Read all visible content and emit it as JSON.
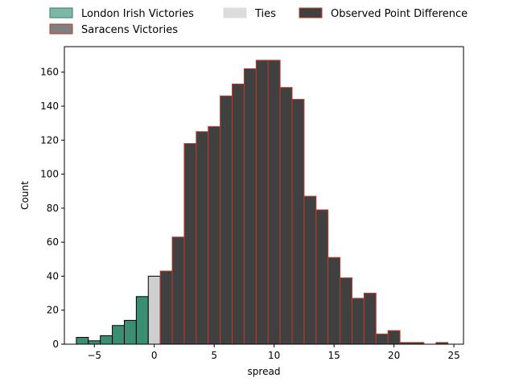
{
  "chart_data": {
    "type": "bar",
    "xlabel": "spread",
    "ylabel": "Count",
    "xlim": [
      -7.5,
      25.8
    ],
    "ylim": [
      0,
      175
    ],
    "x_ticks": [
      -5,
      0,
      5,
      10,
      15,
      20,
      25
    ],
    "y_ticks": [
      0,
      20,
      40,
      60,
      80,
      100,
      120,
      140,
      160
    ],
    "x_tick_labels": [
      "−5",
      "0",
      "5",
      "10",
      "15",
      "20",
      "25"
    ],
    "y_tick_labels": [
      "0",
      "20",
      "40",
      "60",
      "80",
      "100",
      "120",
      "140",
      "160"
    ],
    "grid": false,
    "bin_width": 1,
    "legend": {
      "placement": "top-outside",
      "entries": [
        {
          "label": "London Irish Victories",
          "color": "#7fb8a7",
          "edge": "#2e7d62"
        },
        {
          "label": "Ties",
          "color": "#dcdcdc",
          "edge": "#dcdcdc"
        },
        {
          "label": "Observed Point Difference",
          "color": "#404040",
          "edge": "#c0392b"
        },
        {
          "label": "Saracens Victories",
          "color": "#808080",
          "edge": "#c0392b"
        }
      ]
    },
    "series": [
      {
        "name": "London Irish Victories",
        "color": "#3a8f73",
        "edge": "#000000",
        "bins": [
          {
            "left": -6.5,
            "right": -5.5,
            "count": 4
          },
          {
            "left": -5.5,
            "right": -4.5,
            "count": 2
          },
          {
            "left": -4.5,
            "right": -3.5,
            "count": 5
          },
          {
            "left": -3.5,
            "right": -2.5,
            "count": 11
          },
          {
            "left": -2.5,
            "right": -1.5,
            "count": 14
          },
          {
            "left": -1.5,
            "right": -0.5,
            "count": 28
          }
        ]
      },
      {
        "name": "Ties",
        "color": "#cfcfcf",
        "edge": "#000000",
        "bins": [
          {
            "left": -0.5,
            "right": 0.5,
            "count": 40
          }
        ]
      },
      {
        "name": "Saracens Victories",
        "color": "#404040",
        "edge": "#c0392b",
        "bins": [
          {
            "left": 0.5,
            "right": 1.5,
            "count": 43
          },
          {
            "left": 1.5,
            "right": 2.5,
            "count": 63
          },
          {
            "left": 2.5,
            "right": 3.5,
            "count": 118
          },
          {
            "left": 3.5,
            "right": 4.5,
            "count": 125
          },
          {
            "left": 4.5,
            "right": 5.5,
            "count": 128
          },
          {
            "left": 5.5,
            "right": 6.5,
            "count": 146
          },
          {
            "left": 6.5,
            "right": 7.5,
            "count": 153
          },
          {
            "left": 7.5,
            "right": 8.5,
            "count": 162
          },
          {
            "left": 8.5,
            "right": 9.5,
            "count": 167
          },
          {
            "left": 9.5,
            "right": 10.5,
            "count": 167
          },
          {
            "left": 10.5,
            "right": 11.5,
            "count": 151
          },
          {
            "left": 11.5,
            "right": 12.5,
            "count": 144
          },
          {
            "left": 12.5,
            "right": 13.5,
            "count": 87
          },
          {
            "left": 13.5,
            "right": 14.5,
            "count": 79
          },
          {
            "left": 14.5,
            "right": 15.5,
            "count": 51
          },
          {
            "left": 15.5,
            "right": 16.5,
            "count": 39
          },
          {
            "left": 16.5,
            "right": 17.5,
            "count": 27
          },
          {
            "left": 17.5,
            "right": 18.5,
            "count": 30
          },
          {
            "left": 18.5,
            "right": 19.5,
            "count": 6
          },
          {
            "left": 19.5,
            "right": 20.5,
            "count": 8
          },
          {
            "left": 20.5,
            "right": 21.5,
            "count": 1
          },
          {
            "left": 21.5,
            "right": 22.5,
            "count": 1
          },
          {
            "left": 22.5,
            "right": 23.5,
            "count": 0
          },
          {
            "left": 23.5,
            "right": 24.5,
            "count": 1
          }
        ]
      }
    ]
  }
}
